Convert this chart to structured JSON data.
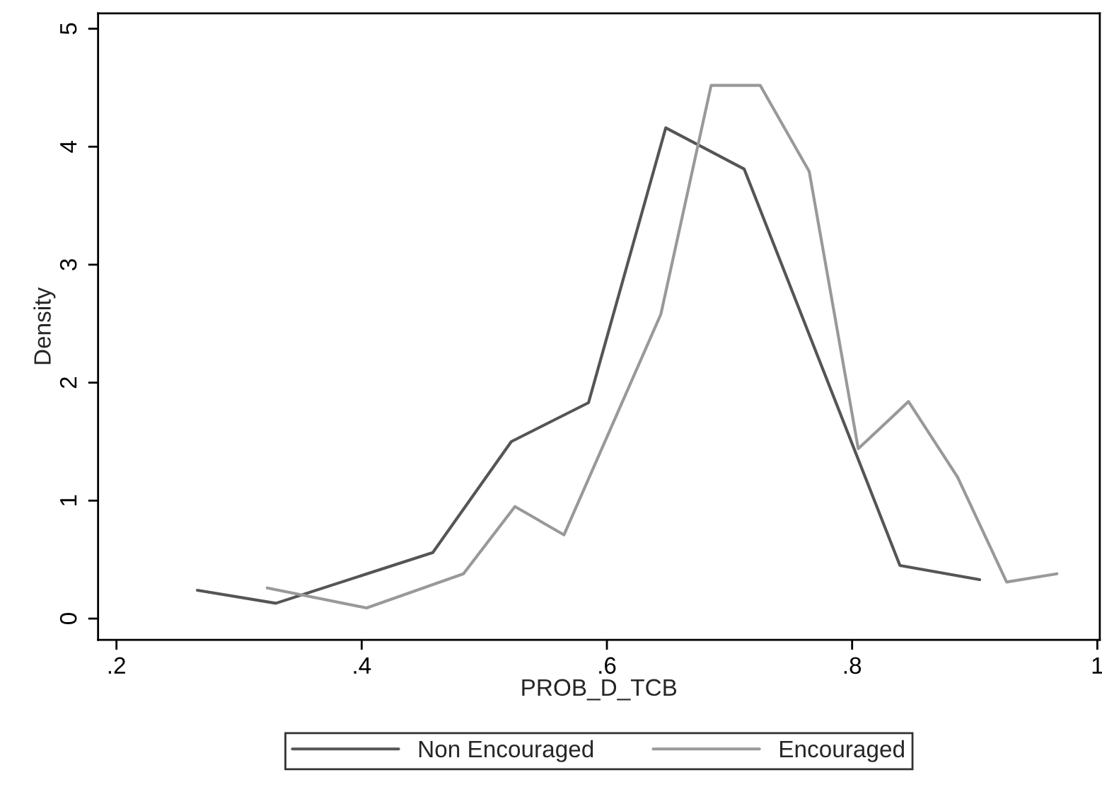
{
  "chart_data": {
    "type": "line",
    "xlabel": "PROB_D_TCB",
    "ylabel": "Density",
    "xlim": [
      0.185,
      1.002
    ],
    "ylim": [
      -0.18,
      5.13
    ],
    "xticks": [
      {
        "value": 0.2,
        "label": ".2"
      },
      {
        "value": 0.4,
        "label": ".4"
      },
      {
        "value": 0.6,
        "label": ".6"
      },
      {
        "value": 0.8,
        "label": ".8"
      },
      1
    ],
    "yticks": [
      0,
      1,
      2,
      3,
      4,
      5
    ],
    "grid": false,
    "legend": "bottom",
    "series": [
      {
        "name": "Non Encouraged",
        "color": "#555555",
        "x": [
          0.266,
          0.33,
          0.458,
          0.522,
          0.585,
          0.648,
          0.712,
          0.839,
          0.904
        ],
        "values": [
          0.24,
          0.13,
          0.56,
          1.5,
          1.83,
          4.16,
          3.81,
          0.45,
          0.33
        ]
      },
      {
        "name": "Encouraged",
        "color": "#999999",
        "x": [
          0.323,
          0.404,
          0.483,
          0.525,
          0.565,
          0.644,
          0.685,
          0.725,
          0.765,
          0.805,
          0.846,
          0.886,
          0.926,
          0.967
        ],
        "values": [
          0.26,
          0.09,
          0.38,
          0.95,
          0.71,
          2.58,
          4.52,
          4.52,
          3.79,
          1.44,
          1.84,
          1.2,
          0.31,
          0.38
        ]
      }
    ]
  }
}
